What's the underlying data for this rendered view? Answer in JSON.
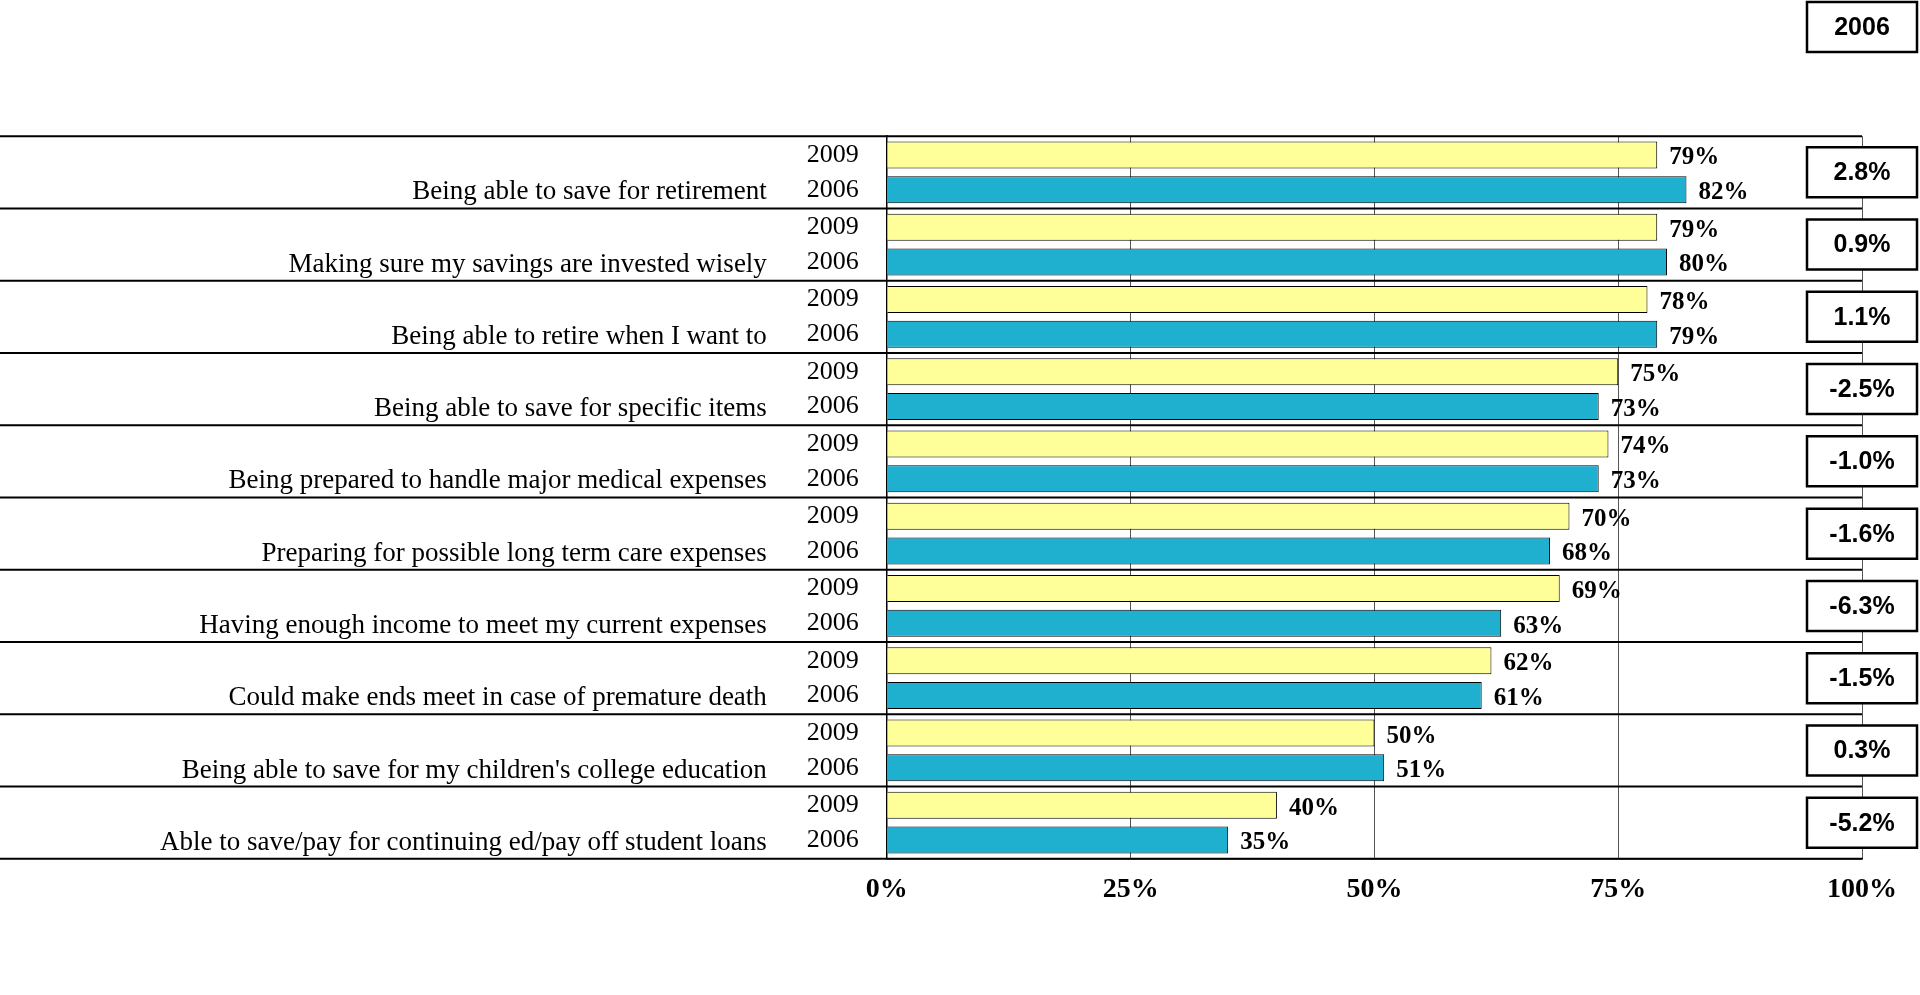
{
  "chart_data": {
    "type": "bar",
    "orientation": "horizontal",
    "categories": [
      "Being able to save for retirement",
      "Making sure my savings are invested wisely",
      "Being able to retire when I want to",
      "Being able to save for specific items",
      "Being prepared to handle major medical expenses",
      "Preparing for possible long term care expenses",
      "Having enough income to meet my current expenses",
      "Could make ends meet in case of premature death",
      "Being able to save for my children's college education",
      "Able to save/pay for continuing ed/pay off student loans"
    ],
    "series": [
      {
        "name": "2009",
        "color": "#ffff99",
        "values": [
          79,
          79,
          78,
          75,
          74,
          70,
          69,
          62,
          50,
          40
        ],
        "value_labels": [
          "79%",
          "79%",
          "78%",
          "75%",
          "74%",
          "70%",
          "69%",
          "62%",
          "50%",
          "40%"
        ]
      },
      {
        "name": "2006",
        "color": "#1fb0d0",
        "values": [
          82,
          80,
          79,
          73,
          73,
          68,
          63,
          61,
          51,
          35
        ],
        "value_labels": [
          "82%",
          "80%",
          "79%",
          "73%",
          "73%",
          "68%",
          "63%",
          "61%",
          "51%",
          "35%"
        ]
      }
    ],
    "xlim": [
      0,
      100
    ],
    "xticks": [
      {
        "value": 0,
        "label": "0%"
      },
      {
        "value": 25,
        "label": "25%"
      },
      {
        "value": 50,
        "label": "50%"
      },
      {
        "value": 75,
        "label": "75%"
      },
      {
        "value": 100,
        "label": "100%"
      }
    ],
    "grid": "x",
    "legend": false,
    "annotations": [
      "2006",
      "2.8%",
      "0.9%",
      "1.1%",
      "-2.5%",
      "-1.0%",
      "-1.6%",
      "-6.3%",
      "-1.5%",
      "0.3%",
      "-5.2%"
    ]
  }
}
